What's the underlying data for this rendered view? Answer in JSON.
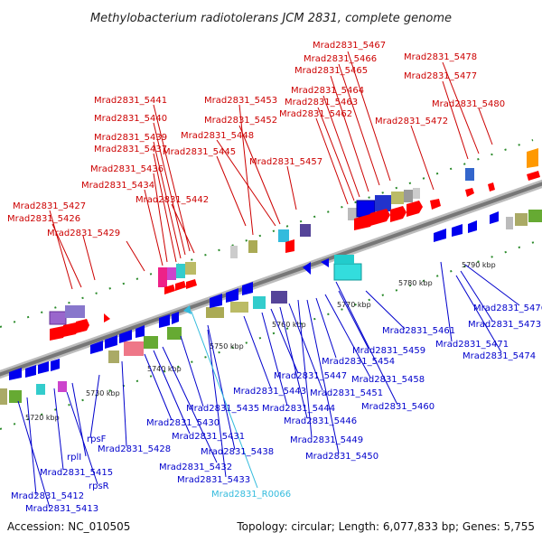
{
  "title": "Methylobacterium radiotolerans JCM 2831, complete genome",
  "footer": {
    "accession": "Accession: NC_010505",
    "summary": "Topology: circular; Length: 6,077,833 bp; Genes: 5,755"
  },
  "colors": {
    "forward": "#ff0000",
    "reverse": "#0000ee",
    "rna": "#33bbdd",
    "backbone": "#888888",
    "tick": "#2a8a2a"
  },
  "scale_ticks": [
    "5720 kbp",
    "5730 kbp",
    "5740 kbp",
    "5750 kbp",
    "5760 kbp",
    "5770 kbp",
    "5780 kbp",
    "5790 kbp"
  ],
  "genes_top": [
    "Mrad2831_5467",
    "Mrad2831_5466",
    "Mrad2831_5465",
    "Mrad2831_5478",
    "Mrad2831_5477",
    "Mrad2831_5464",
    "Mrad2831_5463",
    "Mrad2831_5462",
    "Mrad2831_5480",
    "Mrad2831_5472",
    "Mrad2831_5441",
    "Mrad2831_5453",
    "Mrad2831_5440",
    "Mrad2831_5452",
    "Mrad2831_5439",
    "Mrad2831_5448",
    "Mrad2831_5437",
    "Mrad2831_5445",
    "Mrad2831_5457",
    "Mrad2831_5436",
    "Mrad2831_5434",
    "Mrad2831_5442",
    "Mrad2831_5427",
    "Mrad2831_5426",
    "Mrad2831_5429"
  ],
  "genes_bottom": [
    "Mrad2831_5476",
    "Mrad2831_5473",
    "Mrad2831_5474",
    "Mrad2831_5461",
    "Mrad2831_5471",
    "Mrad2831_5459",
    "Mrad2831_5454",
    "Mrad2831_5458",
    "Mrad2831_5447",
    "Mrad2831_5443",
    "Mrad2831_5451",
    "Mrad2831_5460",
    "Mrad2831_5444",
    "Mrad2831_5435",
    "Mrad2831_5446",
    "Mrad2831_5430",
    "Mrad2831_5449",
    "Mrad2831_5431",
    "Mrad2831_5428",
    "Mrad2831_5438",
    "Mrad2831_5450",
    "Mrad2831_5432",
    "Mrad2831_5433",
    "Mrad2831_R0066",
    "rpsF",
    "rplI",
    "Mrad2831_5415",
    "rpsR",
    "Mrad2831_5412",
    "Mrad2831_5413"
  ]
}
